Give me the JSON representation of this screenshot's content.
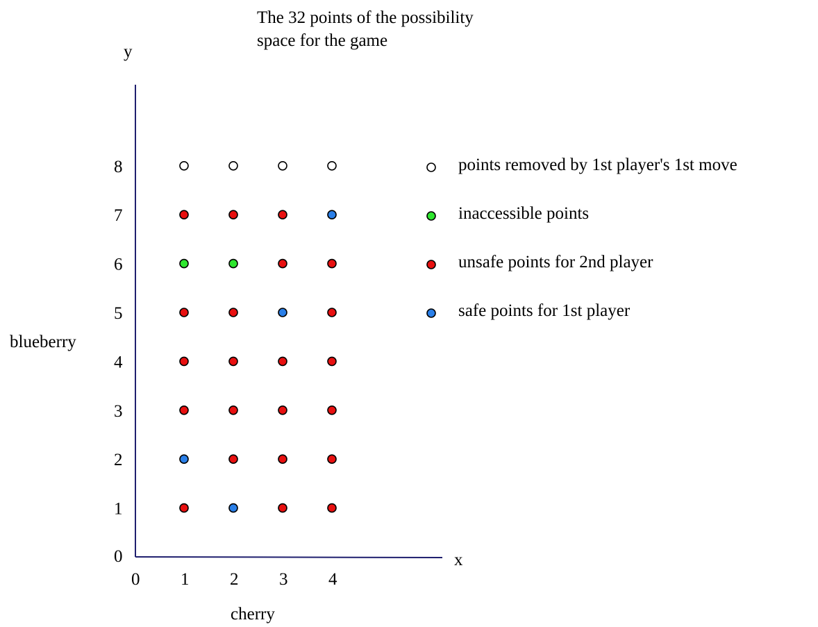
{
  "title_lines": [
    "The 32 points of the possibility",
    "space for the game"
  ],
  "axes": {
    "x_symbol": "x",
    "y_symbol": "y",
    "x_name": "cherry",
    "y_name": "blueberry",
    "x_ticks": [
      "0",
      "1",
      "2",
      "3",
      "4"
    ],
    "y_ticks": [
      "0",
      "1",
      "2",
      "3",
      "4",
      "5",
      "6",
      "7",
      "8"
    ]
  },
  "colors": {
    "axis": "#1f1f6e",
    "removed": "#ffffff",
    "inaccessible": "#2ee62e",
    "unsafe": "#e81010",
    "safe": "#2a7fe8",
    "outline": "#000000"
  },
  "legend": [
    {
      "category": "removed",
      "label": "points removed by 1st player's 1st move"
    },
    {
      "category": "inaccessible",
      "label": "inaccessible points"
    },
    {
      "category": "unsafe",
      "label": "unsafe points for 2nd player"
    },
    {
      "category": "safe",
      "label": "safe points for 1st player"
    }
  ],
  "chart_data": {
    "type": "scatter",
    "x_range": [
      0,
      4
    ],
    "y_range": [
      0,
      8
    ],
    "points": [
      {
        "x": 1,
        "y": 8,
        "category": "removed"
      },
      {
        "x": 2,
        "y": 8,
        "category": "removed"
      },
      {
        "x": 3,
        "y": 8,
        "category": "removed"
      },
      {
        "x": 4,
        "y": 8,
        "category": "removed"
      },
      {
        "x": 1,
        "y": 7,
        "category": "unsafe"
      },
      {
        "x": 2,
        "y": 7,
        "category": "unsafe"
      },
      {
        "x": 3,
        "y": 7,
        "category": "unsafe"
      },
      {
        "x": 4,
        "y": 7,
        "category": "safe"
      },
      {
        "x": 1,
        "y": 6,
        "category": "inaccessible"
      },
      {
        "x": 2,
        "y": 6,
        "category": "inaccessible"
      },
      {
        "x": 3,
        "y": 6,
        "category": "unsafe"
      },
      {
        "x": 4,
        "y": 6,
        "category": "unsafe"
      },
      {
        "x": 1,
        "y": 5,
        "category": "unsafe"
      },
      {
        "x": 2,
        "y": 5,
        "category": "unsafe"
      },
      {
        "x": 3,
        "y": 5,
        "category": "safe"
      },
      {
        "x": 4,
        "y": 5,
        "category": "unsafe"
      },
      {
        "x": 1,
        "y": 4,
        "category": "unsafe"
      },
      {
        "x": 2,
        "y": 4,
        "category": "unsafe"
      },
      {
        "x": 3,
        "y": 4,
        "category": "unsafe"
      },
      {
        "x": 4,
        "y": 4,
        "category": "unsafe"
      },
      {
        "x": 1,
        "y": 3,
        "category": "unsafe"
      },
      {
        "x": 2,
        "y": 3,
        "category": "unsafe"
      },
      {
        "x": 3,
        "y": 3,
        "category": "unsafe"
      },
      {
        "x": 4,
        "y": 3,
        "category": "unsafe"
      },
      {
        "x": 1,
        "y": 2,
        "category": "safe"
      },
      {
        "x": 2,
        "y": 2,
        "category": "unsafe"
      },
      {
        "x": 3,
        "y": 2,
        "category": "unsafe"
      },
      {
        "x": 4,
        "y": 2,
        "category": "unsafe"
      },
      {
        "x": 1,
        "y": 1,
        "category": "unsafe"
      },
      {
        "x": 2,
        "y": 1,
        "category": "safe"
      },
      {
        "x": 3,
        "y": 1,
        "category": "unsafe"
      },
      {
        "x": 4,
        "y": 1,
        "category": "unsafe"
      }
    ]
  }
}
